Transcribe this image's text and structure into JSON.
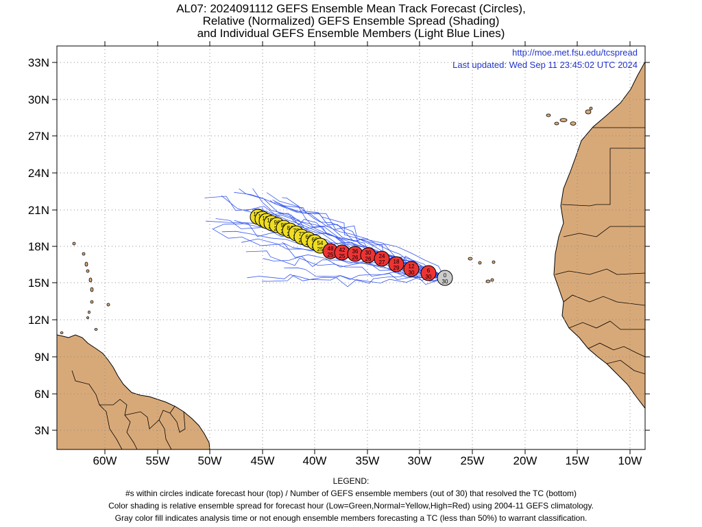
{
  "title": {
    "line1": "AL07: 2024091112 GEFS Ensemble Mean Track Forecast (Circles),",
    "line2": "Relative (Normalized) GEFS Ensemble Spread (Shading)",
    "line3": "and Individual GEFS Ensemble Members (Light Blue Lines)"
  },
  "header_right": {
    "url": "http://moe.met.fsu.edu/tcspread",
    "updated": "Last updated: Wed Sep 11 23:45:02 UTC 2024"
  },
  "axes": {
    "lat_ticks": [
      "33N",
      "30N",
      "27N",
      "24N",
      "21N",
      "18N",
      "15N",
      "12N",
      "9N",
      "6N",
      "3N"
    ],
    "lon_ticks": [
      "60W",
      "55W",
      "50W",
      "45W",
      "40W",
      "35W",
      "30W",
      "25W",
      "20W",
      "15W",
      "10W"
    ]
  },
  "colors": {
    "land": "#d8a978",
    "member_lines": "#3355ee",
    "red": "#ee3333",
    "yellow": "#eedd22",
    "gray": "#cccccc",
    "url_text": "#2233cc"
  },
  "track_points": [
    {
      "hour": "0",
      "members": "30",
      "color": "gray"
    },
    {
      "hour": "6",
      "members": "30",
      "color": "red"
    },
    {
      "hour": "12",
      "members": "30",
      "color": "red"
    },
    {
      "hour": "18",
      "members": "29",
      "color": "red"
    },
    {
      "hour": "24",
      "members": "27",
      "color": "red"
    },
    {
      "hour": "30",
      "members": "26",
      "color": "red"
    },
    {
      "hour": "36",
      "members": "26",
      "color": "red"
    },
    {
      "hour": "42",
      "members": "25",
      "color": "red"
    },
    {
      "hour": "48",
      "members": "25",
      "color": "red"
    },
    {
      "hour": "54",
      "members": "25",
      "color": "yellow"
    },
    {
      "hour": "60",
      "members": "24",
      "color": "yellow"
    },
    {
      "hour": "66",
      "members": "24",
      "color": "yellow"
    },
    {
      "hour": "72",
      "members": "24",
      "color": "yellow"
    },
    {
      "hour": "78",
      "members": "24",
      "color": "yellow"
    },
    {
      "hour": "84",
      "members": "24",
      "color": "yellow"
    },
    {
      "hour": "90",
      "members": "24",
      "color": "yellow"
    },
    {
      "hour": "96",
      "members": "24",
      "color": "yellow"
    },
    {
      "hour": "102",
      "members": "24",
      "color": "yellow"
    },
    {
      "hour": "108",
      "members": "23",
      "color": "yellow"
    },
    {
      "hour": "114",
      "members": "23",
      "color": "yellow"
    },
    {
      "hour": "120",
      "members": "23",
      "color": "yellow"
    }
  ],
  "legend": {
    "heading": "LEGEND:",
    "line1": "#s within circles indicate forecast hour (top) / Number of GEFS ensemble members (out of 30) that resolved the TC (bottom)",
    "line2": "Color shading is relative ensemble spread for forecast hour (Low=Green,Normal=Yellow,High=Red) using 2004-11 GEFS climatology.",
    "line3": "Gray color fill indicates analysis time or not enough ensemble members forecasting a TC (less than 50%) to warrant classification."
  }
}
